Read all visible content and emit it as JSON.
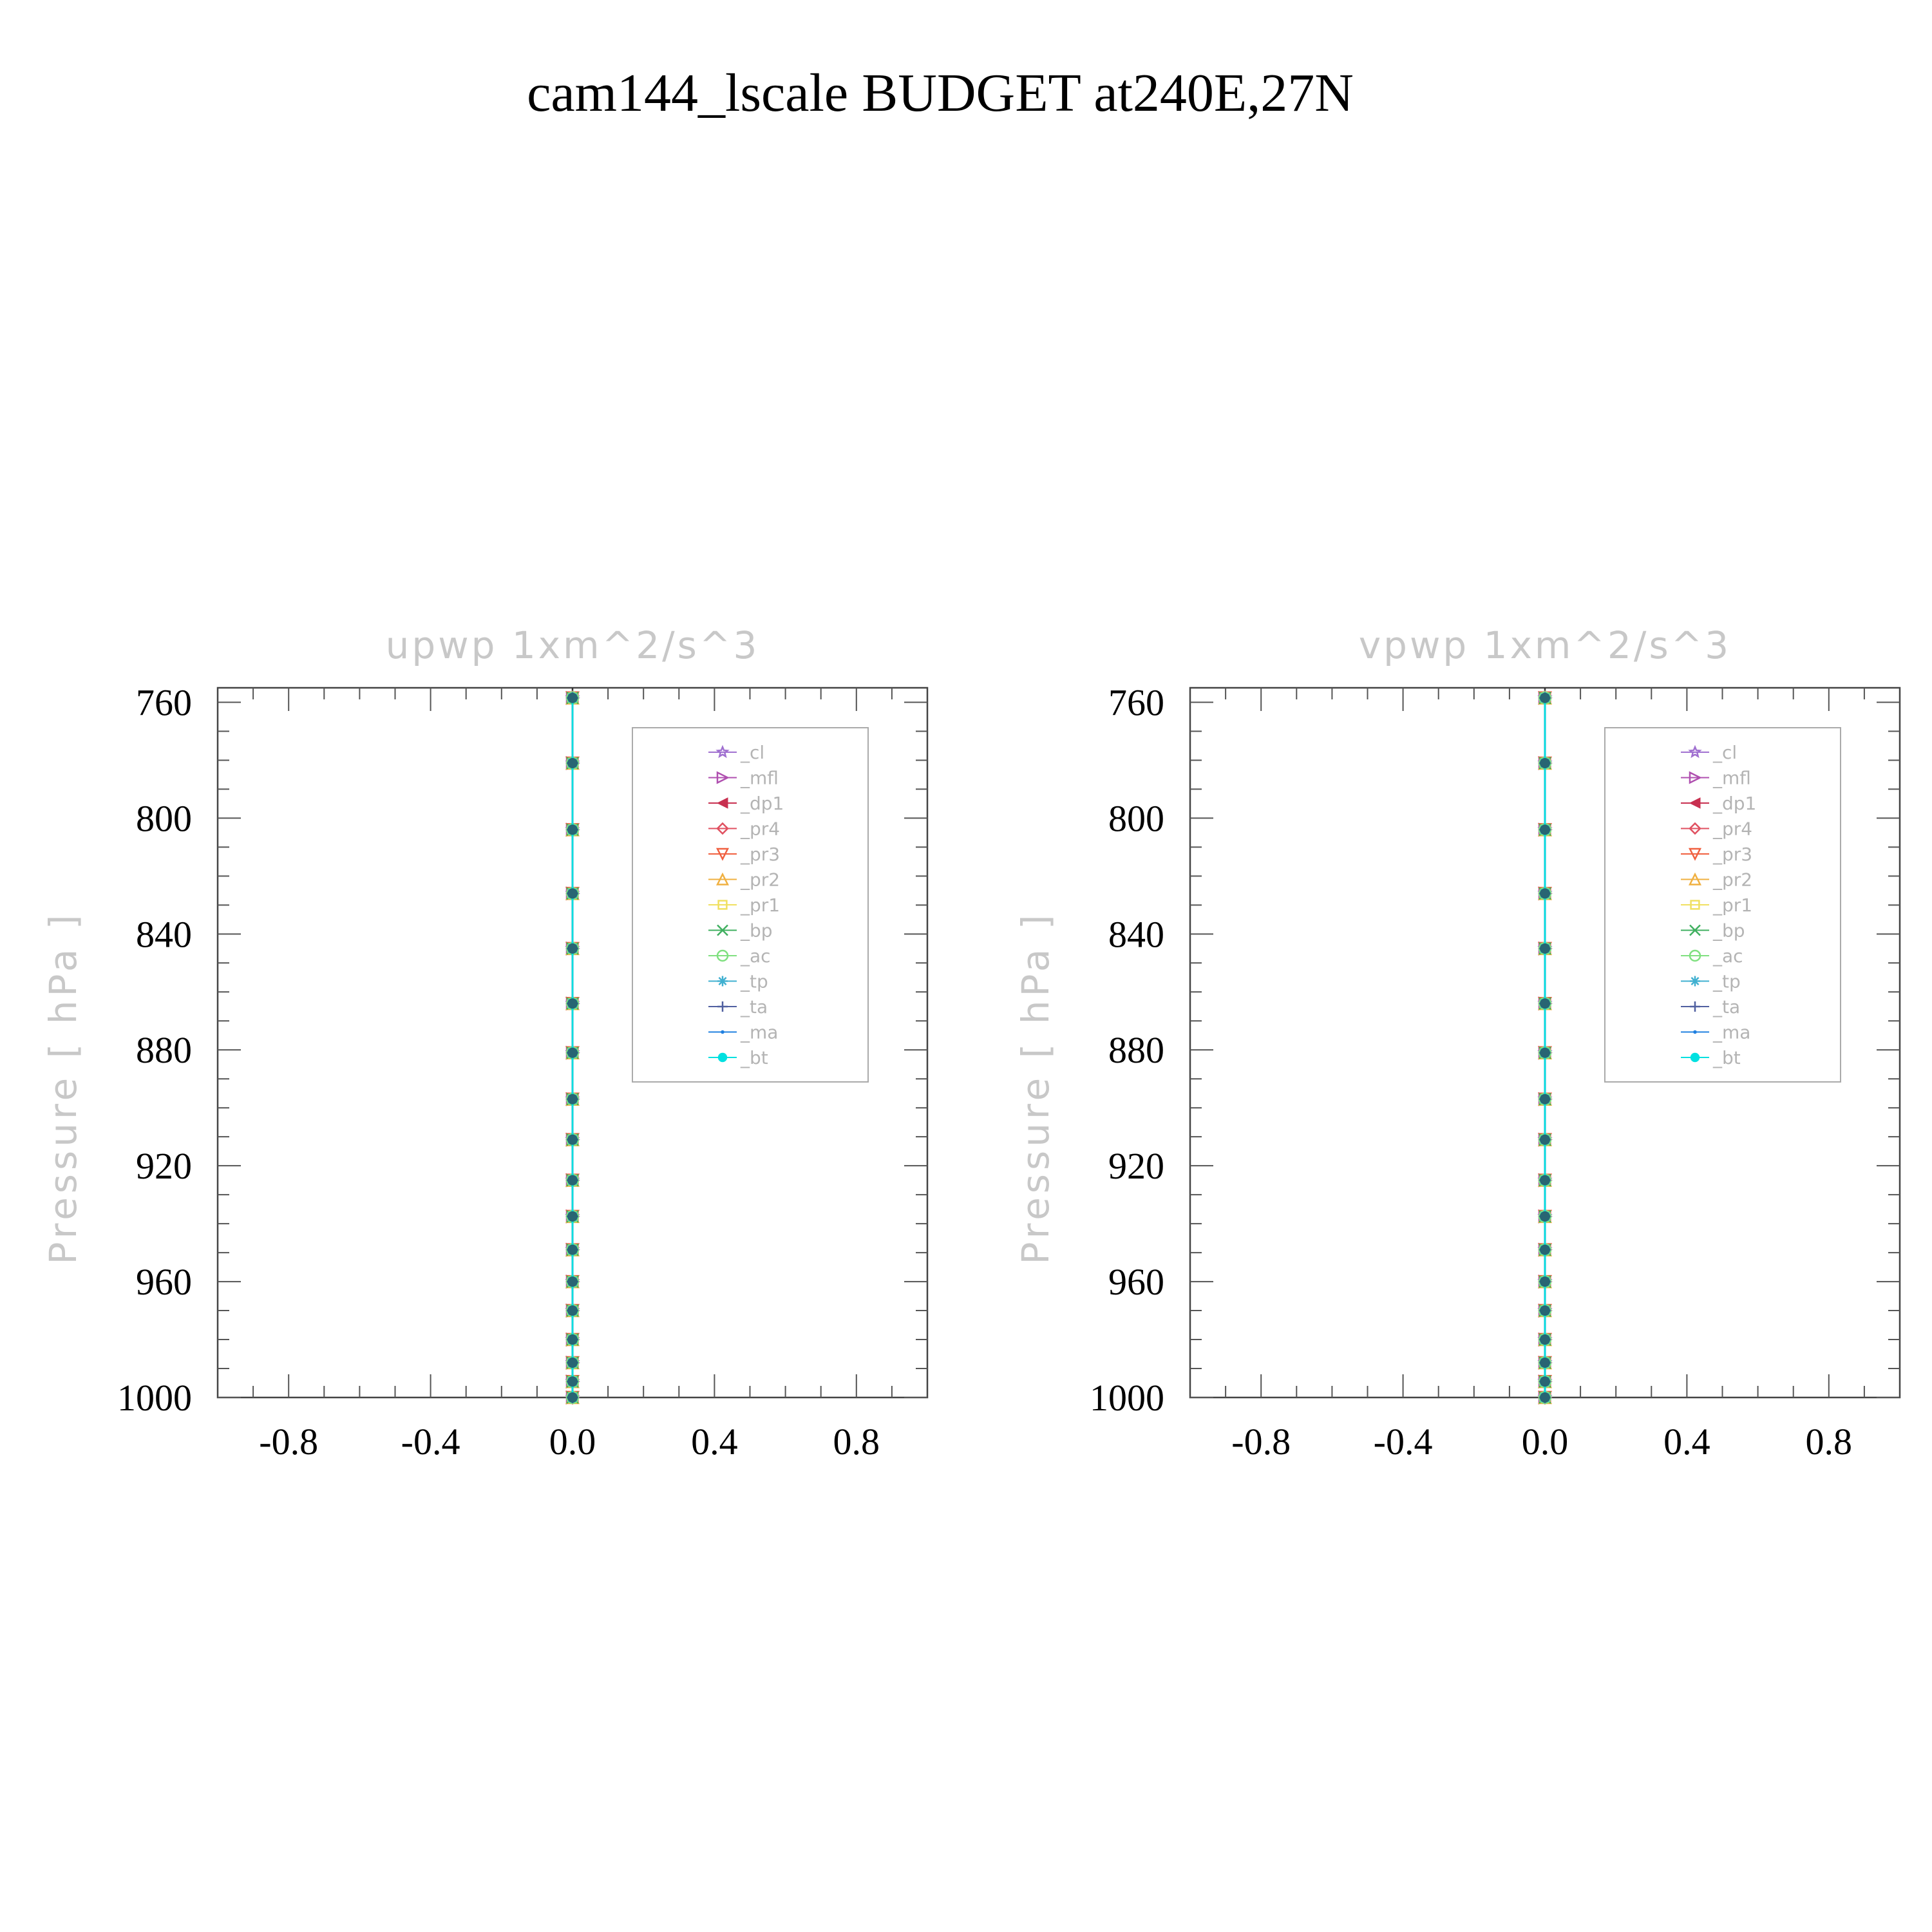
{
  "title": "cam144_lscale  BUDGET at240E,27N",
  "chart_data": [
    {
      "type": "line",
      "panel_title": "upwp    1xm^2/s^3",
      "ylabel": "Pressure  [ hPa ]",
      "xlim": [
        -1.0,
        1.0
      ],
      "ylim": [
        1000,
        755
      ],
      "y_reversed": true,
      "xticks": [
        -0.8,
        -0.4,
        0.0,
        0.4,
        0.8
      ],
      "xtick_labels": [
        "-0.8",
        "-0.4",
        "0.0",
        "0.4",
        "0.8"
      ],
      "yticks": [
        760,
        800,
        840,
        880,
        920,
        960,
        1000
      ],
      "ytick_labels": [
        "760",
        "800",
        "840",
        "880",
        "920",
        "960",
        "1000"
      ],
      "legend_position": "top-right",
      "levels": [
        758.5,
        781,
        804,
        826,
        845,
        864,
        881,
        897,
        911,
        925,
        937.5,
        949,
        960,
        970,
        980,
        988,
        994.5,
        1000
      ],
      "series": [
        {
          "name": "_cl",
          "color": "#a070d0",
          "marker": "star",
          "values": [
            0,
            0,
            0,
            0,
            0,
            0,
            0,
            0,
            0,
            0,
            0,
            0,
            0,
            0,
            0,
            0,
            0,
            0
          ]
        },
        {
          "name": "_mfl",
          "color": "#b050b0",
          "marker": "triangle-right",
          "values": [
            0,
            0,
            0,
            0,
            0,
            0,
            0,
            0,
            0,
            0,
            0,
            0,
            0,
            0,
            0,
            0,
            0,
            0
          ]
        },
        {
          "name": "_dp1",
          "color": "#c83050",
          "marker": "triangle-left",
          "values": [
            0,
            0,
            0,
            0,
            0,
            0,
            0,
            0,
            0,
            0,
            0,
            0,
            0,
            0,
            0,
            0,
            0,
            0
          ]
        },
        {
          "name": "_pr4",
          "color": "#e05060",
          "marker": "diamond",
          "values": [
            0,
            0,
            0,
            0,
            0,
            0,
            0,
            0,
            0,
            0,
            0,
            0,
            0,
            0,
            0,
            0,
            0,
            0
          ]
        },
        {
          "name": "_pr3",
          "color": "#f06040",
          "marker": "triangle-down",
          "values": [
            0,
            0,
            0,
            0,
            0,
            0,
            0,
            0,
            0,
            0,
            0,
            0,
            0,
            0,
            0,
            0,
            0,
            0
          ]
        },
        {
          "name": "_pr2",
          "color": "#f0b040",
          "marker": "triangle-up",
          "values": [
            0,
            0,
            0,
            0,
            0,
            0,
            0,
            0,
            0,
            0,
            0,
            0,
            0,
            0,
            0,
            0,
            0,
            0
          ]
        },
        {
          "name": "_pr1",
          "color": "#f0e060",
          "marker": "square",
          "values": [
            0,
            0,
            0,
            0,
            0,
            0,
            0,
            0,
            0,
            0,
            0,
            0,
            0,
            0,
            0,
            0,
            0,
            0
          ]
        },
        {
          "name": "_bp",
          "color": "#40b060",
          "marker": "x",
          "values": [
            0,
            0,
            0,
            0,
            0,
            0,
            0,
            0,
            0,
            0,
            0,
            0,
            0,
            0,
            0,
            0,
            0,
            0
          ]
        },
        {
          "name": "_ac",
          "color": "#80e080",
          "marker": "circle-open",
          "values": [
            0,
            0,
            0,
            0,
            0,
            0,
            0,
            0,
            0,
            0,
            0,
            0,
            0,
            0,
            0,
            0,
            0,
            0
          ]
        },
        {
          "name": "_tp",
          "color": "#40b0d0",
          "marker": "asterisk",
          "values": [
            0,
            0,
            0,
            0,
            0,
            0,
            0,
            0,
            0,
            0,
            0,
            0,
            0,
            0,
            0,
            0,
            0,
            0
          ]
        },
        {
          "name": "_ta",
          "color": "#5060a0",
          "marker": "plus",
          "values": [
            0,
            0,
            0,
            0,
            0,
            0,
            0,
            0,
            0,
            0,
            0,
            0,
            0,
            0,
            0,
            0,
            0,
            0
          ]
        },
        {
          "name": "_ma",
          "color": "#2080e0",
          "marker": "dot",
          "values": [
            0,
            0,
            0,
            0,
            0,
            0,
            0,
            0,
            0,
            0,
            0,
            0,
            0,
            0,
            0,
            0,
            0,
            0
          ]
        },
        {
          "name": "_bt",
          "color": "#00e0e0",
          "marker": "circle-filled",
          "values": [
            0,
            0,
            0,
            0,
            0,
            0,
            0,
            0,
            0,
            0,
            0,
            0,
            0,
            0,
            0,
            0,
            0,
            0
          ]
        }
      ]
    },
    {
      "type": "line",
      "panel_title": "vpwp    1xm^2/s^3",
      "ylabel": "Pressure  [ hPa ]",
      "xlim": [
        -1.0,
        1.0
      ],
      "ylim": [
        1000,
        755
      ],
      "y_reversed": true,
      "xticks": [
        -0.8,
        -0.4,
        0.0,
        0.4,
        0.8
      ],
      "xtick_labels": [
        "-0.8",
        "-0.4",
        "0.0",
        "0.4",
        "0.8"
      ],
      "yticks": [
        760,
        800,
        840,
        880,
        920,
        960,
        1000
      ],
      "ytick_labels": [
        "760",
        "800",
        "840",
        "880",
        "920",
        "960",
        "1000"
      ],
      "legend_position": "top-right",
      "levels": [
        758.5,
        781,
        804,
        826,
        845,
        864,
        881,
        897,
        911,
        925,
        937.5,
        949,
        960,
        970,
        980,
        988,
        994.5,
        1000
      ],
      "series": [
        {
          "name": "_cl",
          "color": "#a070d0",
          "marker": "star",
          "values": [
            0,
            0,
            0,
            0,
            0,
            0,
            0,
            0,
            0,
            0,
            0,
            0,
            0,
            0,
            0,
            0,
            0,
            0
          ]
        },
        {
          "name": "_mfl",
          "color": "#b050b0",
          "marker": "triangle-right",
          "values": [
            0,
            0,
            0,
            0,
            0,
            0,
            0,
            0,
            0,
            0,
            0,
            0,
            0,
            0,
            0,
            0,
            0,
            0
          ]
        },
        {
          "name": "_dp1",
          "color": "#c83050",
          "marker": "triangle-left",
          "values": [
            0,
            0,
            0,
            0,
            0,
            0,
            0,
            0,
            0,
            0,
            0,
            0,
            0,
            0,
            0,
            0,
            0,
            0
          ]
        },
        {
          "name": "_pr4",
          "color": "#e05060",
          "marker": "diamond",
          "values": [
            0,
            0,
            0,
            0,
            0,
            0,
            0,
            0,
            0,
            0,
            0,
            0,
            0,
            0,
            0,
            0,
            0,
            0
          ]
        },
        {
          "name": "_pr3",
          "color": "#f06040",
          "marker": "triangle-down",
          "values": [
            0,
            0,
            0,
            0,
            0,
            0,
            0,
            0,
            0,
            0,
            0,
            0,
            0,
            0,
            0,
            0,
            0,
            0
          ]
        },
        {
          "name": "_pr2",
          "color": "#f0b040",
          "marker": "triangle-up",
          "values": [
            0,
            0,
            0,
            0,
            0,
            0,
            0,
            0,
            0,
            0,
            0,
            0,
            0,
            0,
            0,
            0,
            0,
            0
          ]
        },
        {
          "name": "_pr1",
          "color": "#f0e060",
          "marker": "square",
          "values": [
            0,
            0,
            0,
            0,
            0,
            0,
            0,
            0,
            0,
            0,
            0,
            0,
            0,
            0,
            0,
            0,
            0,
            0
          ]
        },
        {
          "name": "_bp",
          "color": "#40b060",
          "marker": "x",
          "values": [
            0,
            0,
            0,
            0,
            0,
            0,
            0,
            0,
            0,
            0,
            0,
            0,
            0,
            0,
            0,
            0,
            0,
            0
          ]
        },
        {
          "name": "_ac",
          "color": "#80e080",
          "marker": "circle-open",
          "values": [
            0,
            0,
            0,
            0,
            0,
            0,
            0,
            0,
            0,
            0,
            0,
            0,
            0,
            0,
            0,
            0,
            0,
            0
          ]
        },
        {
          "name": "_tp",
          "color": "#40b0d0",
          "marker": "asterisk",
          "values": [
            0,
            0,
            0,
            0,
            0,
            0,
            0,
            0,
            0,
            0,
            0,
            0,
            0,
            0,
            0,
            0,
            0,
            0
          ]
        },
        {
          "name": "_ta",
          "color": "#5060a0",
          "marker": "plus",
          "values": [
            0,
            0,
            0,
            0,
            0,
            0,
            0,
            0,
            0,
            0,
            0,
            0,
            0,
            0,
            0,
            0,
            0,
            0
          ]
        },
        {
          "name": "_ma",
          "color": "#2080e0",
          "marker": "dot",
          "values": [
            0,
            0,
            0,
            0,
            0,
            0,
            0,
            0,
            0,
            0,
            0,
            0,
            0,
            0,
            0,
            0,
            0,
            0
          ]
        },
        {
          "name": "_bt",
          "color": "#00e0e0",
          "marker": "circle-filled",
          "values": [
            0,
            0,
            0,
            0,
            0,
            0,
            0,
            0,
            0,
            0,
            0,
            0,
            0,
            0,
            0,
            0,
            0,
            0
          ]
        }
      ]
    }
  ]
}
